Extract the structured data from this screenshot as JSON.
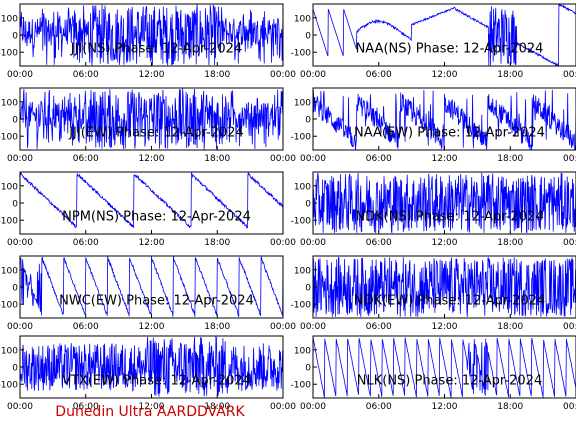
{
  "footer": "Dunedin Ultra AARDDVARK",
  "colors": {
    "trace": "#0000ff",
    "frame": "#000000",
    "footer": "#cc0000",
    "background": "#ffffff"
  },
  "chart_data": [
    {
      "type": "line",
      "title": "JJI(NS) Phase: 12-Apr-2024",
      "xticks": [
        "00:00",
        "06:00",
        "12:00",
        "18:00",
        "00:00"
      ],
      "yticks": [
        "100",
        "0",
        "-100"
      ],
      "xlim": [
        0,
        24
      ],
      "ylim": [
        -180,
        180
      ],
      "pattern": "noise-mid",
      "grid": false
    },
    {
      "type": "line",
      "title": "NAA(NS) Phase: 12-Apr-2024",
      "xticks": [
        "00:00",
        "06:00",
        "12:00",
        "18:00",
        "00:00"
      ],
      "yticks": [
        "100",
        "0",
        "-100"
      ],
      "xlim": [
        0,
        24
      ],
      "ylim": [
        -180,
        180
      ],
      "pattern": "drift-mid",
      "grid": false
    },
    {
      "type": "line",
      "title": "JJI(EW) Phase: 12-Apr-2024",
      "xticks": [
        "00:00",
        "06:00",
        "12:00",
        "18:00",
        "00:00"
      ],
      "yticks": [
        "100",
        "0",
        "-100"
      ],
      "xlim": [
        0,
        24
      ],
      "ylim": [
        -180,
        180
      ],
      "pattern": "noise-mid",
      "grid": false
    },
    {
      "type": "line",
      "title": "NAA(EW) Phase: 12-Apr-2024",
      "xticks": [
        "00:00",
        "06:00",
        "12:00",
        "18:00",
        "00:00"
      ],
      "yticks": [
        "100",
        "0",
        "-100"
      ],
      "xlim": [
        0,
        24
      ],
      "ylim": [
        -180,
        180
      ],
      "pattern": "drift-noisy",
      "grid": false
    },
    {
      "type": "line",
      "title": "NPM(NS) Phase: 12-Apr-2024",
      "xticks": [
        "00:00",
        "06:00",
        "12:00",
        "18:00",
        "00:00"
      ],
      "yticks": [
        "100",
        "0",
        "-100"
      ],
      "xlim": [
        0,
        24
      ],
      "ylim": [
        -180,
        180
      ],
      "pattern": "sawtooth-slow",
      "grid": false
    },
    {
      "type": "line",
      "title": "NDK(NS) Phase: 12-Apr-2024",
      "xticks": [
        "00:00",
        "06:00",
        "12:00",
        "18:00",
        "00:00"
      ],
      "yticks": [
        "100",
        "0",
        "-100"
      ],
      "xlim": [
        0,
        24
      ],
      "ylim": [
        -180,
        180
      ],
      "pattern": "noise",
      "grid": false
    },
    {
      "type": "line",
      "title": "NWC(EW) Phase: 12-Apr-2024",
      "xticks": [
        "00:00",
        "06:00",
        "12:00",
        "18:00",
        "00:00"
      ],
      "yticks": [
        "100",
        "0",
        "-100"
      ],
      "xlim": [
        0,
        24
      ],
      "ylim": [
        -180,
        180
      ],
      "pattern": "sawtooth-medium",
      "grid": false
    },
    {
      "type": "line",
      "title": "NDK(EW) Phase: 12-Apr-2024",
      "xticks": [
        "00:00",
        "06:00",
        "12:00",
        "18:00",
        "00:00"
      ],
      "yticks": [
        "100",
        "0",
        "-100"
      ],
      "xlim": [
        0,
        24
      ],
      "ylim": [
        -180,
        180
      ],
      "pattern": "noise",
      "grid": false
    },
    {
      "type": "line",
      "title": "VTX(EW) Phase: 12-Apr-2024",
      "xticks": [
        "00:00",
        "06:00",
        "12:00",
        "18:00",
        "00:00"
      ],
      "yticks": [
        "100",
        "0",
        "-100"
      ],
      "xlim": [
        0,
        24
      ],
      "ylim": [
        -180,
        180
      ],
      "pattern": "noise-late",
      "grid": false
    },
    {
      "type": "line",
      "title": "NLK(NS) Phase: 12-Apr-2024",
      "xticks": [
        "00:00",
        "06:00",
        "12:00",
        "18:00",
        "00:00"
      ],
      "yticks": [
        "100",
        "0",
        "-100"
      ],
      "xlim": [
        0,
        24
      ],
      "ylim": [
        -180,
        180
      ],
      "pattern": "sawtooth-fast",
      "grid": false
    }
  ]
}
